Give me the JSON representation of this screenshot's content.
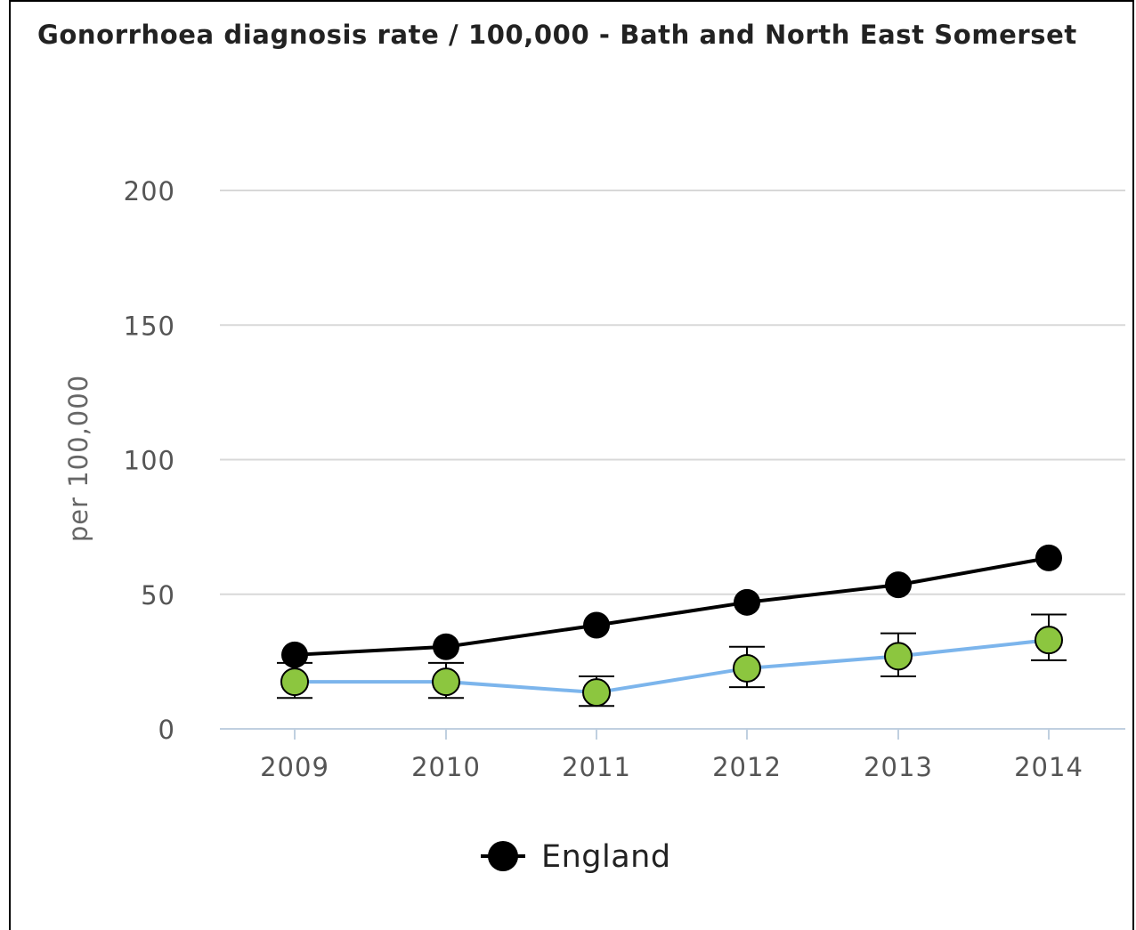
{
  "chart_data": {
    "type": "line",
    "title": "Gonorrhoea diagnosis rate / 100,000 - Bath and North East Somerset",
    "ylabel": "per 100,000",
    "xlabel": "",
    "x": [
      "2009",
      "2010",
      "2011",
      "2012",
      "2013",
      "2014"
    ],
    "ylim": [
      0,
      200
    ],
    "yticks": [
      "0",
      "50",
      "100",
      "150",
      "200"
    ],
    "grid": true,
    "legend_position": "bottom-center",
    "series": [
      {
        "name": "England",
        "values": [
          27.5,
          30.5,
          38.5,
          47.0,
          53.5,
          63.5
        ],
        "line_color": "#000000",
        "marker_color": "#000000",
        "show_in_legend": true
      },
      {
        "values": [
          17.5,
          17.5,
          13.5,
          22.5,
          27.0,
          33.0
        ],
        "error_low": [
          11.5,
          11.5,
          8.5,
          15.5,
          19.5,
          25.5
        ],
        "error_high": [
          24.5,
          24.5,
          19.5,
          30.5,
          35.5,
          42.5
        ],
        "line_color": "#7cb5ec",
        "marker_color": "#8cc63f",
        "show_in_legend": false
      }
    ]
  }
}
